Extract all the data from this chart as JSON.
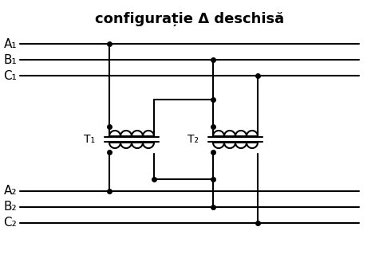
{
  "title": "configurație Δ deschisă",
  "title_fontsize": 13,
  "title_fontweight": "bold",
  "background_color": "#ffffff",
  "line_color": "#000000",
  "line_width": 1.5,
  "figsize": [
    4.75,
    3.39
  ],
  "dpi": 100,
  "labels_left": [
    "A₁",
    "B₁",
    "C₁"
  ],
  "labels_secondary": [
    "A₂",
    "B₂",
    "C₂"
  ],
  "T1_label": "T₁",
  "T2_label": "T₂",
  "dot_color": "#000000",
  "dot_size": 4
}
